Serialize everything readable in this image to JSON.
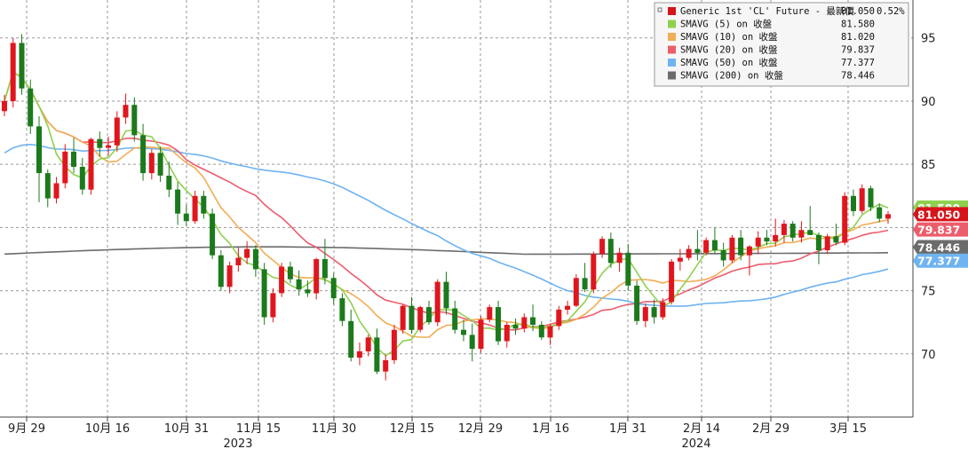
{
  "chart_data": {
    "type": "line",
    "candlesticks": true,
    "ylim": [
      65,
      98
    ],
    "y_ticks": [
      70,
      75,
      80,
      85,
      90,
      95
    ],
    "x_tick_labels": [
      "9月 29",
      "10月 16",
      "10月 31",
      "11月 15",
      "11月 30",
      "12月 15",
      "12月 29",
      "1月 16",
      "1月 31",
      "2月 14",
      "2月 29",
      "3月 15"
    ],
    "year_labels": [
      "2023",
      "2024"
    ],
    "grid": true,
    "legend_placement": "top-right",
    "colors": {
      "up": "#e0161e",
      "down": "#1c7a1c",
      "sma5": "#8fd14f",
      "sma10": "#f2ad55",
      "sma20": "#ec5d6c",
      "sma50": "#6fb3f0",
      "sma200": "#6b6b6b",
      "price": "#d6141b"
    },
    "legend": [
      {
        "name": "Generic 1st 'CL' Future - 最新價",
        "value": "81.050",
        "change": "0.52%",
        "color": "#d6141b"
      },
      {
        "name": "SMAVG (5)  on 收盤",
        "value": "81.580",
        "color": "#8fd14f"
      },
      {
        "name": "SMAVG (10) on 收盤",
        "value": "81.020",
        "color": "#f2ad55"
      },
      {
        "name": "SMAVG (20) on 收盤",
        "value": "79.837",
        "color": "#ec5d6c"
      },
      {
        "name": "SMAVG (50) on 收盤",
        "value": "77.377",
        "color": "#6fb3f0"
      },
      {
        "name": "SMAVG (200) on 收盤",
        "value": "78.446",
        "color": "#6b6b6b"
      }
    ],
    "last_value_tags": [
      {
        "text": "81.580",
        "value": 81.58,
        "color": "#8fd14f"
      },
      {
        "text": "81.050",
        "value": 81.05,
        "color": "#d6141b"
      },
      {
        "text": "79.837",
        "value": 79.837,
        "color": "#ec5d6c"
      },
      {
        "text": "78.446",
        "value": 78.446,
        "color": "#6b6b6b"
      },
      {
        "text": "77.377",
        "value": 77.377,
        "color": "#6fb3f0"
      }
    ],
    "ohlc": [
      [
        89.2,
        90.5,
        88.8,
        90.0
      ],
      [
        90.0,
        95.0,
        89.5,
        94.6
      ],
      [
        94.6,
        95.3,
        90.5,
        91.0
      ],
      [
        91.0,
        91.7,
        87.4,
        88.0
      ],
      [
        88.0,
        88.8,
        82.0,
        84.3
      ],
      [
        84.3,
        84.6,
        81.6,
        82.3
      ],
      [
        82.3,
        84.0,
        81.9,
        83.5
      ],
      [
        83.5,
        86.6,
        83.1,
        86.0
      ],
      [
        86.0,
        87.1,
        84.3,
        84.8
      ],
      [
        84.8,
        85.5,
        82.6,
        83.0
      ],
      [
        83.0,
        87.1,
        82.6,
        87.0
      ],
      [
        87.0,
        87.6,
        85.6,
        86.3
      ],
      [
        86.3,
        87.2,
        85.7,
        86.5
      ],
      [
        86.5,
        89.2,
        86.0,
        88.7
      ],
      [
        88.7,
        90.6,
        88.2,
        89.7
      ],
      [
        89.7,
        90.3,
        86.8,
        87.3
      ],
      [
        87.3,
        88.2,
        83.7,
        84.3
      ],
      [
        84.3,
        86.2,
        83.8,
        85.9
      ],
      [
        85.9,
        86.4,
        83.6,
        84.1
      ],
      [
        84.1,
        85.2,
        82.4,
        83.0
      ],
      [
        83.0,
        83.6,
        80.2,
        81.1
      ],
      [
        81.1,
        81.8,
        80.1,
        80.5
      ],
      [
        80.5,
        82.9,
        80.3,
        82.5
      ],
      [
        82.5,
        82.9,
        80.7,
        81.1
      ],
      [
        81.1,
        81.5,
        77.5,
        77.8
      ],
      [
        77.8,
        78.2,
        75.0,
        75.3
      ],
      [
        75.3,
        77.3,
        74.8,
        77.0
      ],
      [
        77.0,
        78.4,
        76.5,
        77.6
      ],
      [
        77.6,
        78.9,
        77.1,
        78.3
      ],
      [
        78.3,
        78.6,
        76.1,
        76.7
      ],
      [
        76.7,
        77.2,
        72.3,
        72.9
      ],
      [
        72.9,
        75.2,
        72.5,
        74.8
      ],
      [
        74.8,
        77.2,
        74.5,
        76.9
      ],
      [
        76.9,
        77.3,
        75.6,
        75.9
      ],
      [
        75.9,
        76.6,
        74.6,
        75.1
      ],
      [
        75.1,
        75.8,
        74.5,
        74.8
      ],
      [
        74.8,
        77.6,
        74.3,
        77.5
      ],
      [
        77.5,
        79.1,
        75.5,
        76.0
      ],
      [
        76.0,
        76.4,
        73.9,
        74.4
      ],
      [
        74.4,
        74.8,
        72.2,
        72.6
      ],
      [
        72.6,
        73.5,
        69.4,
        69.7
      ],
      [
        69.7,
        70.9,
        69.1,
        70.2
      ],
      [
        70.2,
        71.5,
        69.8,
        71.3
      ],
      [
        71.3,
        72.0,
        68.4,
        68.6
      ],
      [
        68.6,
        69.9,
        67.9,
        69.5
      ],
      [
        69.5,
        72.3,
        69.2,
        71.9
      ],
      [
        71.9,
        73.9,
        71.6,
        73.8
      ],
      [
        73.8,
        74.5,
        71.6,
        71.9
      ],
      [
        71.9,
        73.8,
        71.7,
        73.7
      ],
      [
        73.7,
        74.2,
        72.3,
        72.5
      ],
      [
        72.5,
        75.9,
        72.2,
        75.7
      ],
      [
        75.7,
        76.5,
        73.1,
        73.6
      ],
      [
        73.6,
        74.2,
        71.6,
        71.9
      ],
      [
        71.9,
        72.7,
        71.0,
        71.5
      ],
      [
        71.5,
        72.4,
        69.4,
        70.4
      ],
      [
        70.4,
        73.0,
        70.1,
        72.7
      ],
      [
        72.7,
        73.9,
        72.5,
        73.7
      ],
      [
        73.7,
        74.2,
        70.7,
        71.0
      ],
      [
        71.0,
        72.5,
        70.5,
        72.3
      ],
      [
        72.3,
        72.8,
        71.5,
        72.0
      ],
      [
        72.0,
        73.2,
        71.7,
        72.9
      ],
      [
        72.9,
        73.9,
        71.8,
        72.3
      ],
      [
        72.3,
        72.6,
        71.1,
        71.3
      ],
      [
        71.3,
        72.4,
        70.7,
        72.2
      ],
      [
        72.2,
        73.8,
        71.9,
        73.5
      ],
      [
        73.5,
        74.2,
        73.1,
        73.8
      ],
      [
        73.8,
        76.3,
        73.7,
        76.0
      ],
      [
        76.0,
        77.2,
        74.9,
        75.1
      ],
      [
        75.1,
        78.1,
        74.8,
        77.9
      ],
      [
        77.9,
        79.3,
        77.6,
        79.1
      ],
      [
        79.1,
        79.6,
        76.8,
        77.2
      ],
      [
        77.2,
        78.4,
        76.5,
        78.0
      ],
      [
        78.0,
        78.7,
        75.0,
        75.4
      ],
      [
        75.4,
        75.8,
        72.3,
        72.6
      ],
      [
        72.6,
        74.0,
        72.1,
        73.7
      ],
      [
        73.7,
        74.3,
        72.4,
        72.9
      ],
      [
        72.9,
        74.4,
        72.7,
        74.1
      ],
      [
        74.1,
        77.5,
        73.9,
        77.3
      ],
      [
        77.3,
        78.3,
        76.6,
        77.6
      ],
      [
        77.6,
        78.6,
        77.4,
        78.3
      ],
      [
        78.3,
        79.8,
        77.4,
        78.0
      ],
      [
        78.0,
        79.2,
        77.8,
        79.0
      ],
      [
        79.0,
        80.0,
        77.9,
        78.2
      ],
      [
        78.2,
        78.8,
        76.9,
        77.4
      ],
      [
        77.4,
        79.4,
        77.2,
        79.2
      ],
      [
        79.2,
        79.8,
        77.4,
        77.8
      ],
      [
        77.8,
        78.6,
        76.2,
        78.5
      ],
      [
        78.5,
        79.7,
        77.9,
        79.2
      ],
      [
        79.2,
        79.8,
        78.6,
        78.9
      ],
      [
        78.9,
        80.7,
        78.5,
        79.4
      ],
      [
        79.4,
        80.6,
        78.8,
        80.3
      ],
      [
        80.3,
        80.5,
        78.9,
        79.2
      ],
      [
        79.2,
        80.5,
        78.8,
        79.8
      ],
      [
        79.8,
        81.7,
        79.5,
        79.4
      ],
      [
        79.4,
        79.6,
        77.1,
        78.2
      ],
      [
        78.2,
        79.5,
        77.9,
        79.3
      ],
      [
        79.3,
        80.3,
        78.6,
        78.8
      ],
      [
        78.8,
        82.8,
        78.6,
        82.5
      ],
      [
        82.5,
        83.0,
        80.9,
        81.3
      ],
      [
        81.3,
        83.4,
        81.1,
        83.1
      ],
      [
        83.1,
        83.3,
        81.3,
        81.6
      ],
      [
        81.6,
        81.9,
        80.4,
        80.7
      ],
      [
        80.7,
        81.3,
        80.3,
        81.05
      ]
    ]
  }
}
